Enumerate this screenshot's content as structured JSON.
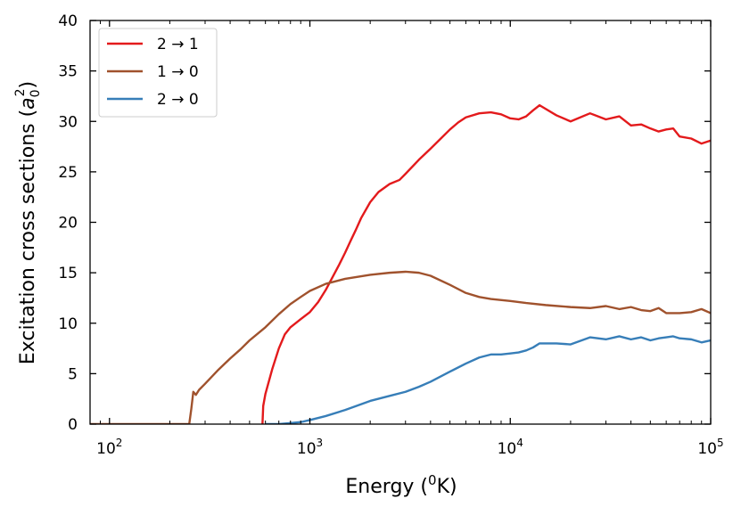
{
  "chart_data": {
    "type": "line",
    "xlabel": "Energy (",
    "xlabel_sup": "0",
    "xlabel_end": "K)",
    "ylabel": "Excitation cross sections (",
    "ylabel_var": "a",
    "ylabel_sub": "0",
    "ylabel_sup": "2",
    "ylabel_end": ")",
    "xscale": "log",
    "xlim": [
      80,
      100000
    ],
    "ylim": [
      0,
      40
    ],
    "xticks": [
      {
        "value": 100,
        "base": "10",
        "exp": "2"
      },
      {
        "value": 1000,
        "base": "10",
        "exp": "3"
      },
      {
        "value": 10000,
        "base": "10",
        "exp": "4"
      },
      {
        "value": 100000,
        "base": "10",
        "exp": "5"
      }
    ],
    "yticks": [
      0,
      5,
      10,
      15,
      20,
      25,
      30,
      35,
      40
    ],
    "grid": false,
    "legend_position": "top-left",
    "series": [
      {
        "name": "2 → 1",
        "color": "#e31a1c",
        "x": [
          580,
          585,
          600,
          650,
          700,
          750,
          800,
          900,
          1000,
          1100,
          1200,
          1300,
          1400,
          1500,
          1600,
          1700,
          1800,
          2000,
          2200,
          2500,
          2800,
          3000,
          3500,
          4000,
          4500,
          5000,
          5500,
          6000,
          7000,
          8000,
          9000,
          10000,
          11000,
          12000,
          13000,
          14000,
          17000,
          20000,
          25000,
          30000,
          35000,
          40000,
          45000,
          50000,
          55000,
          60000,
          65000,
          70000,
          80000,
          90000,
          100000
        ],
        "y": [
          0,
          1.8,
          3.0,
          5.5,
          7.5,
          8.9,
          9.6,
          10.4,
          11.1,
          12.1,
          13.3,
          14.6,
          15.8,
          17.0,
          18.2,
          19.3,
          20.4,
          22.0,
          23.0,
          23.8,
          24.2,
          24.8,
          26.2,
          27.3,
          28.3,
          29.2,
          29.9,
          30.4,
          30.8,
          30.9,
          30.7,
          30.3,
          30.2,
          30.5,
          31.1,
          31.6,
          30.6,
          30.0,
          30.8,
          30.2,
          30.5,
          29.6,
          29.7,
          29.3,
          29.0,
          29.2,
          29.3,
          28.5,
          28.3,
          27.8,
          28.1
        ]
      },
      {
        "name": "1 → 0",
        "color": "#a0522d",
        "x": [
          80,
          100,
          150,
          200,
          250,
          256,
          262,
          270,
          280,
          300,
          350,
          400,
          450,
          500,
          600,
          700,
          800,
          900,
          1000,
          1200,
          1500,
          2000,
          2500,
          3000,
          3500,
          4000,
          5000,
          6000,
          7000,
          8000,
          10000,
          12000,
          15000,
          20000,
          25000,
          30000,
          35000,
          40000,
          45000,
          50000,
          55000,
          60000,
          70000,
          80000,
          90000,
          100000
        ],
        "y": [
          0,
          0,
          0,
          0,
          0,
          1.5,
          3.2,
          2.9,
          3.4,
          4.0,
          5.4,
          6.5,
          7.4,
          8.3,
          9.6,
          10.9,
          11.9,
          12.6,
          13.2,
          13.9,
          14.4,
          14.8,
          15.0,
          15.1,
          15.0,
          14.7,
          13.8,
          13.0,
          12.6,
          12.4,
          12.2,
          12.0,
          11.8,
          11.6,
          11.5,
          11.7,
          11.4,
          11.6,
          11.3,
          11.2,
          11.5,
          11.0,
          11.0,
          11.1,
          11.4,
          11.0
        ]
      },
      {
        "name": "2 → 0",
        "color": "#377eb8",
        "x": [
          600,
          700,
          800,
          900,
          1000,
          1200,
          1500,
          2000,
          2500,
          3000,
          3500,
          4000,
          5000,
          6000,
          7000,
          8000,
          9000,
          10000,
          11000,
          12000,
          13000,
          14000,
          17000,
          20000,
          25000,
          30000,
          35000,
          40000,
          45000,
          50000,
          55000,
          60000,
          65000,
          70000,
          80000,
          90000,
          100000
        ],
        "y": [
          0,
          0,
          0.1,
          0.2,
          0.4,
          0.8,
          1.4,
          2.3,
          2.8,
          3.2,
          3.7,
          4.2,
          5.2,
          6.0,
          6.6,
          6.9,
          6.9,
          7.0,
          7.1,
          7.3,
          7.6,
          8.0,
          8.0,
          7.9,
          8.6,
          8.4,
          8.7,
          8.4,
          8.6,
          8.3,
          8.5,
          8.6,
          8.7,
          8.5,
          8.4,
          8.1,
          8.3
        ]
      }
    ]
  }
}
